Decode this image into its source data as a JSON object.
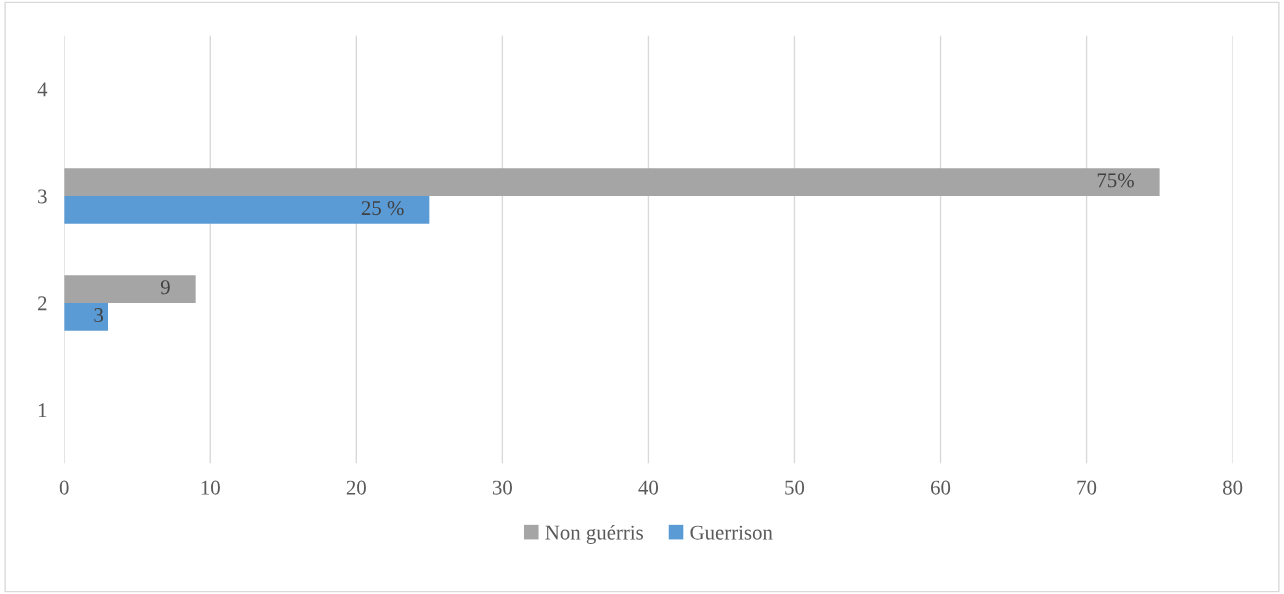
{
  "chart_data": {
    "type": "bar",
    "orientation": "horizontal",
    "categories": [
      "4",
      "3",
      "2",
      "1"
    ],
    "series": [
      {
        "name": "Non guérris",
        "color": "#a5a5a5",
        "values": [
          null,
          75,
          9,
          null
        ],
        "value_labels": [
          null,
          "75%",
          "9",
          null
        ]
      },
      {
        "name": "Guerrison",
        "color": "#5b9bd5",
        "values": [
          null,
          25,
          3,
          null
        ],
        "value_labels": [
          null,
          "25 %",
          "3",
          null
        ]
      }
    ],
    "xlim": [
      0,
      80
    ],
    "xticks": [
      0,
      10,
      20,
      30,
      40,
      50,
      60,
      70,
      80
    ],
    "grid": "x",
    "legend": "bottom"
  }
}
